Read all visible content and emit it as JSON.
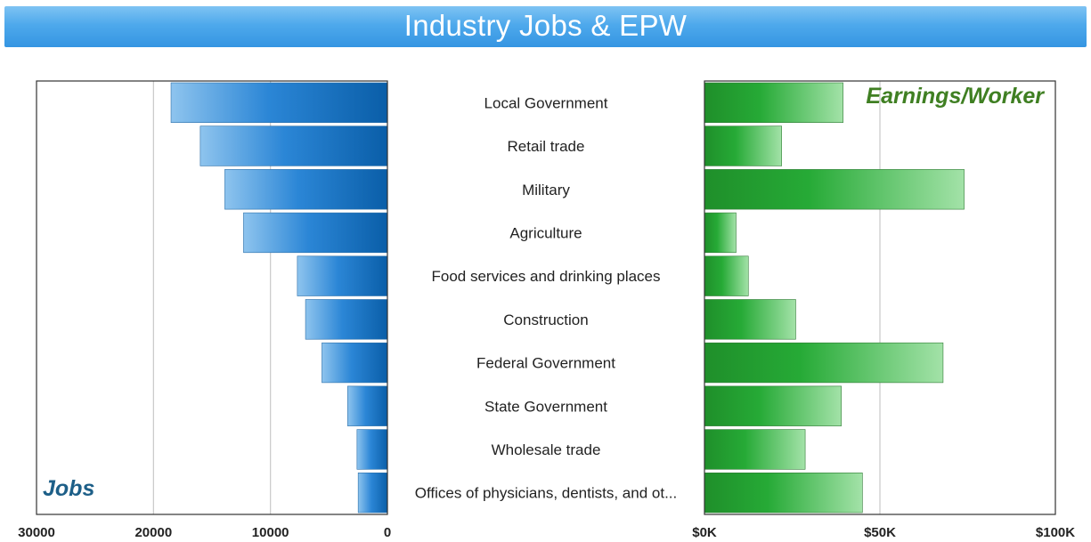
{
  "title": "Industry Jobs & EPW",
  "chart_data": [
    {
      "type": "bar",
      "orientation": "horizontal",
      "direction": "reversed",
      "label": "Jobs",
      "categories": [
        "Local Government",
        "Retail trade",
        "Military",
        "Agriculture",
        "Food services and drinking places",
        "Construction",
        "Federal Government",
        "State Government",
        "Wholesale trade",
        "Offices of physicians, dentists, and ot..."
      ],
      "values": [
        18500,
        16000,
        13900,
        12300,
        7700,
        7000,
        5600,
        3400,
        2600,
        2500
      ],
      "xlim": [
        0,
        30000
      ],
      "ticks": [
        30000,
        20000,
        10000,
        0
      ],
      "tick_labels": [
        "30000",
        "20000",
        "10000",
        "0"
      ],
      "grid": true,
      "color": "#1a7ad0"
    },
    {
      "type": "bar",
      "orientation": "horizontal",
      "label": "Earnings/Worker",
      "categories": [
        "Local Government",
        "Retail trade",
        "Military",
        "Agriculture",
        "Food services and drinking places",
        "Construction",
        "Federal Government",
        "State Government",
        "Wholesale trade",
        "Offices of physicians, dentists, and ot..."
      ],
      "values": [
        39500,
        22000,
        74000,
        9000,
        12500,
        26000,
        68000,
        39000,
        28700,
        45000
      ],
      "xlim": [
        0,
        100000
      ],
      "ticks": [
        0,
        50000,
        100000
      ],
      "tick_labels": [
        "$0K",
        "$50K",
        "$100K"
      ],
      "grid": true,
      "color": "#2eaa3a"
    }
  ]
}
